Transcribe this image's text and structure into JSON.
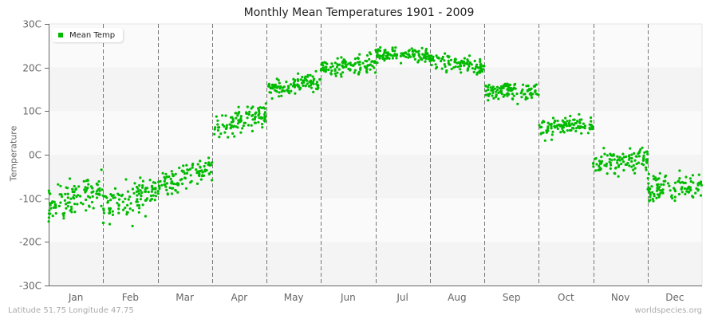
{
  "chart_data": {
    "type": "scatter",
    "title": "Monthly Mean Temperatures 1901 - 2009",
    "xlabel": "",
    "ylabel": "Temperature",
    "ylim": [
      -30,
      30
    ],
    "y_ticks": [
      {
        "value": 30,
        "label": "30C"
      },
      {
        "value": 20,
        "label": "20C"
      },
      {
        "value": 10,
        "label": "10C"
      },
      {
        "value": 0,
        "label": "0C"
      },
      {
        "value": -10,
        "label": "-10C"
      },
      {
        "value": -20,
        "label": "-20C"
      },
      {
        "value": -30,
        "label": "-30C"
      }
    ],
    "categories": [
      "Jan",
      "Feb",
      "Mar",
      "Apr",
      "May",
      "Jun",
      "Jul",
      "Aug",
      "Sep",
      "Oct",
      "Nov",
      "Dec"
    ],
    "series": [
      {
        "name": "Mean Temp",
        "color": "#00bb00",
        "points_per_month": 109,
        "monthly_stats": [
          {
            "month": "Jan",
            "mean_start": -12,
            "mean_end": -8,
            "spread": 4.0,
            "min": -20,
            "max": 0
          },
          {
            "month": "Feb",
            "mean_start": -12,
            "mean_end": -8,
            "spread": 4.0,
            "min": -23,
            "max": -1
          },
          {
            "month": "Mar",
            "mean_start": -7,
            "mean_end": -3,
            "spread": 3.0,
            "min": -11,
            "max": 1
          },
          {
            "month": "Apr",
            "mean_start": 6,
            "mean_end": 9,
            "spread": 2.8,
            "min": 1,
            "max": 13
          },
          {
            "month": "May",
            "mean_start": 15,
            "mean_end": 17,
            "spread": 2.0,
            "min": 10,
            "max": 22
          },
          {
            "month": "Jun",
            "mean_start": 20,
            "mean_end": 21,
            "spread": 1.8,
            "min": 16,
            "max": 26
          },
          {
            "month": "Jul",
            "mean_start": 23,
            "mean_end": 23,
            "spread": 1.6,
            "min": 19,
            "max": 28
          },
          {
            "month": "Aug",
            "mean_start": 22,
            "mean_end": 20,
            "spread": 1.8,
            "min": 17,
            "max": 26
          },
          {
            "month": "Sep",
            "mean_start": 15,
            "mean_end": 14.5,
            "spread": 1.8,
            "min": 10,
            "max": 19
          },
          {
            "month": "Oct",
            "mean_start": 6,
            "mean_end": 7,
            "spread": 2.0,
            "min": 0,
            "max": 11
          },
          {
            "month": "Nov",
            "mean_start": -2,
            "mean_end": -1,
            "spread": 2.5,
            "min": -8,
            "max": 3
          },
          {
            "month": "Dec",
            "mean_start": -8,
            "mean_end": -7,
            "spread": 3.0,
            "min": -17,
            "max": -2
          }
        ]
      }
    ],
    "grid": {
      "horizontal_bands": true,
      "vertical_dashed_month_separators": true
    },
    "legend": {
      "position": "top-left",
      "entries": [
        "Mean Temp"
      ]
    }
  },
  "footer": {
    "location": "Latitude 51.75 Longitude 47.75",
    "source": "worldspecies.org"
  }
}
